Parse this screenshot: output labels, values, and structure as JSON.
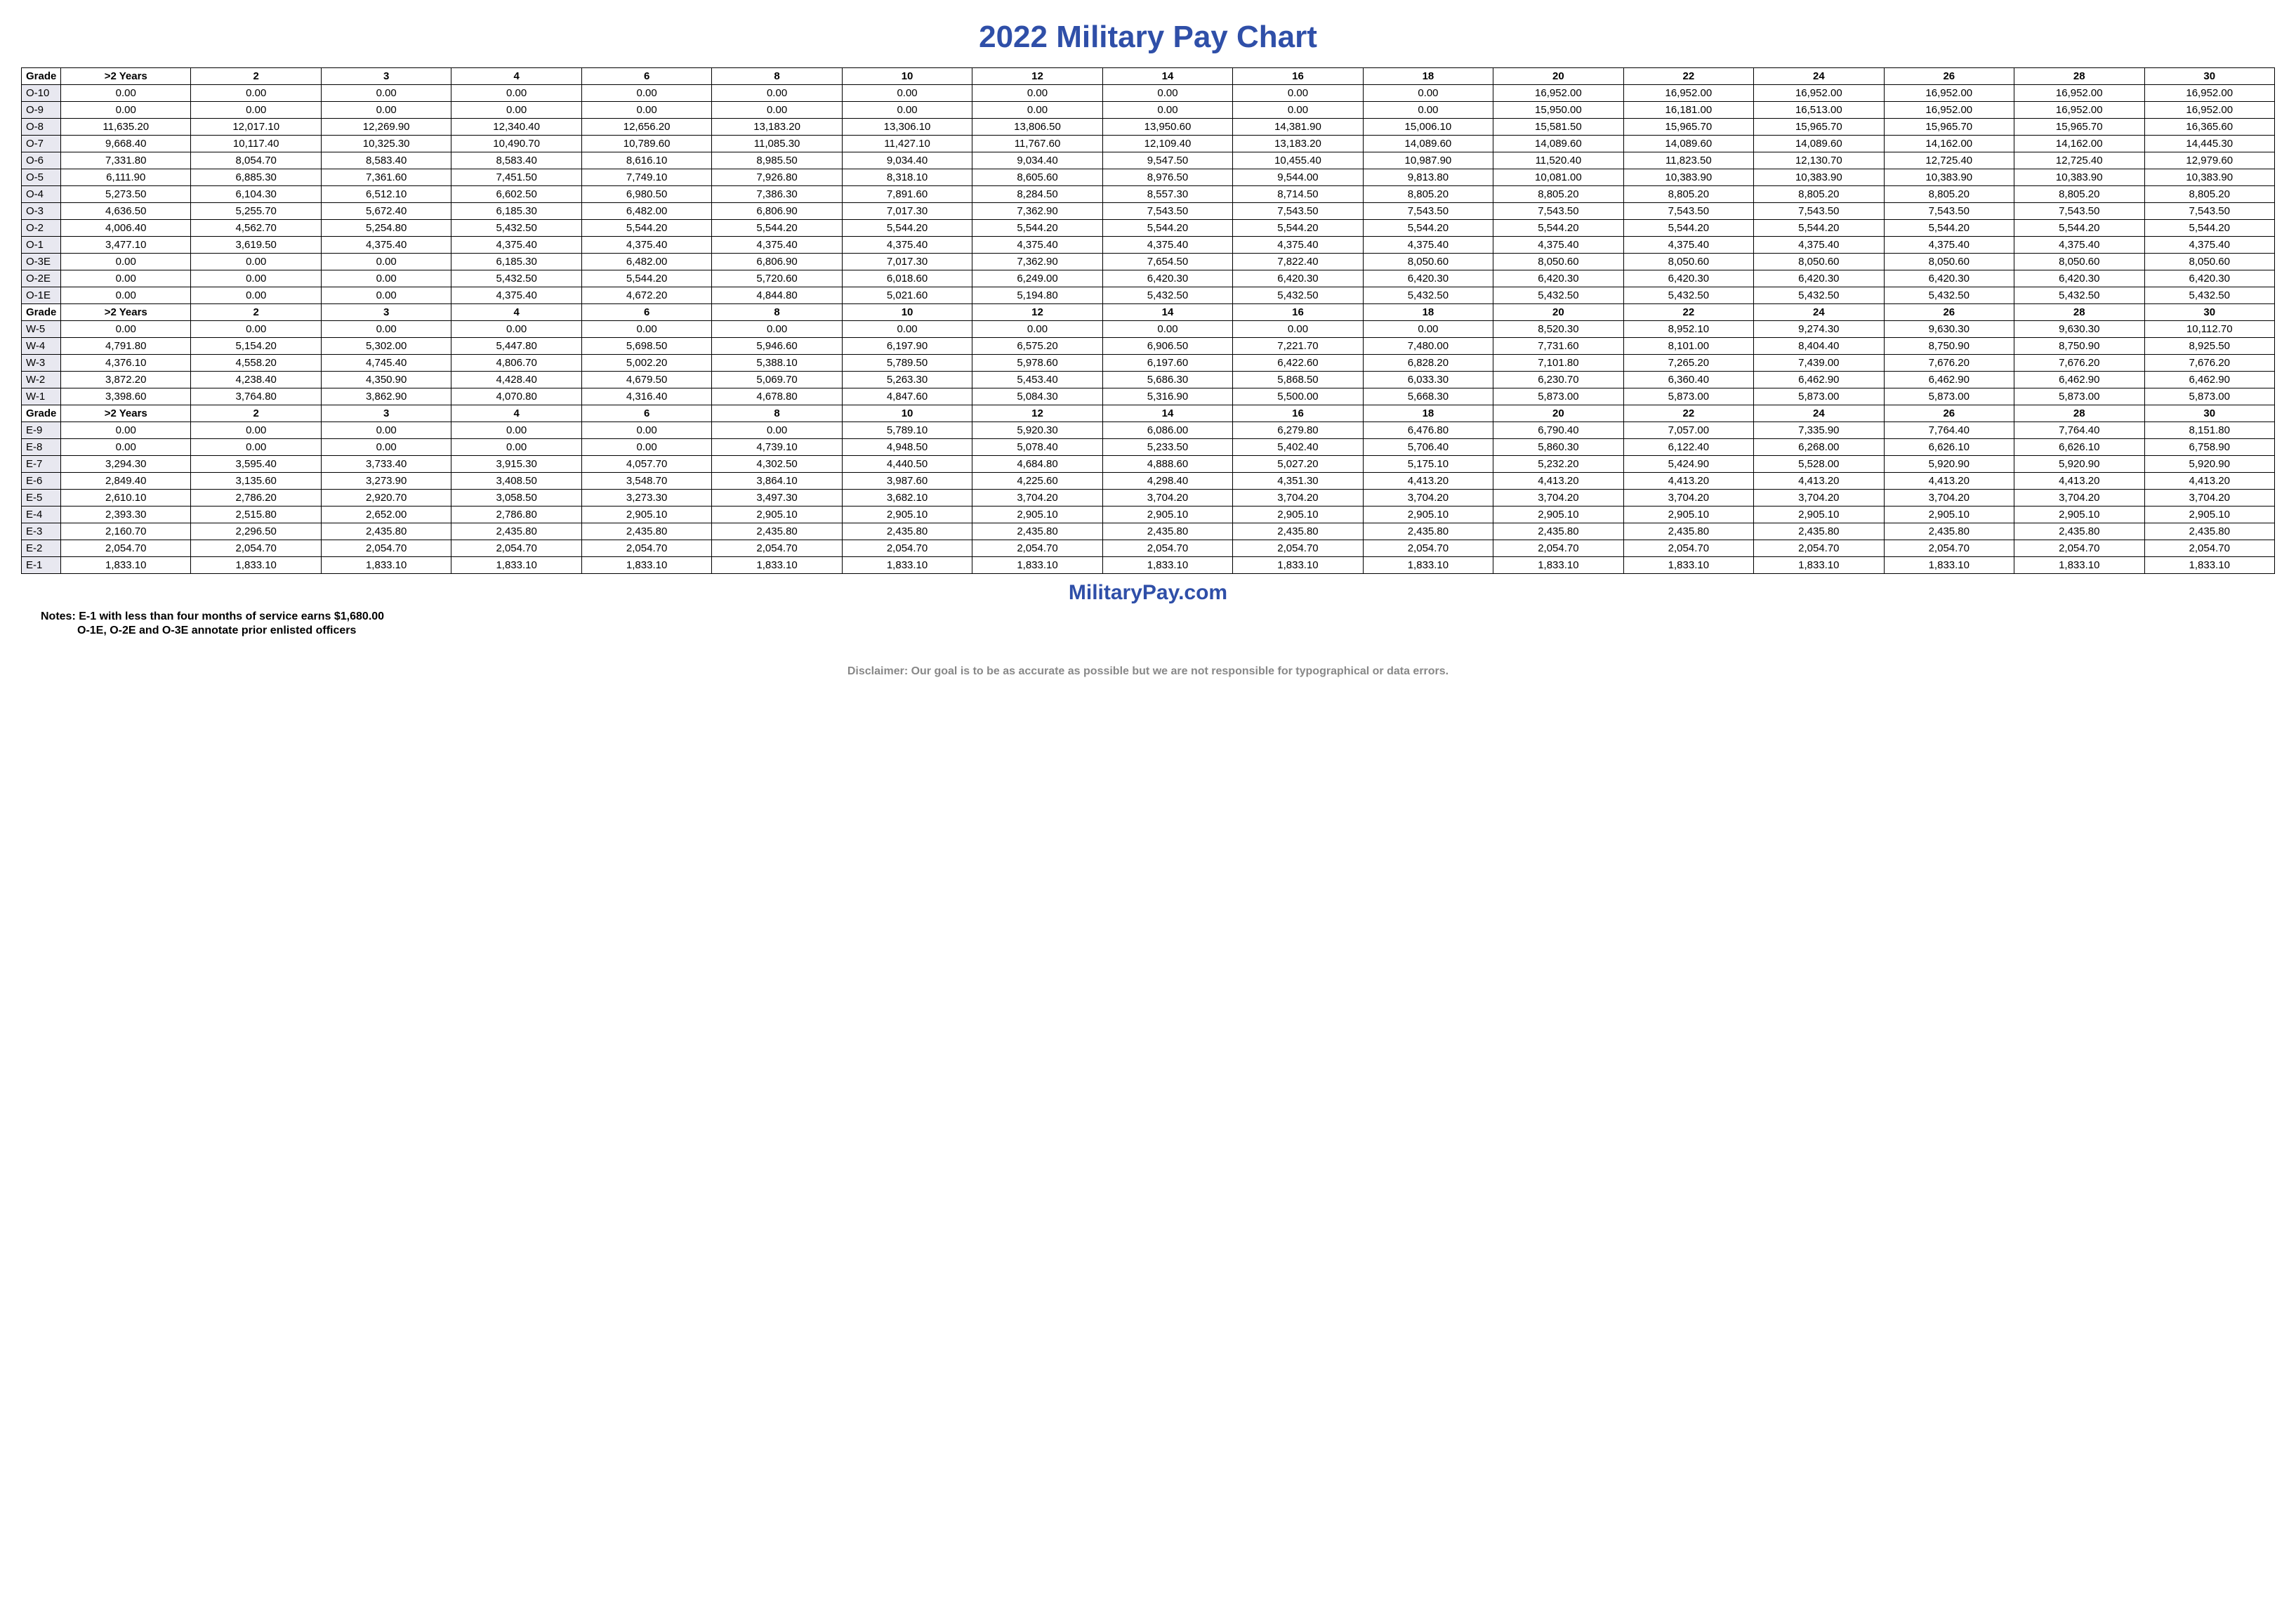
{
  "title": "2022 Military Pay Chart",
  "site": "MilitaryPay.com",
  "notes_line1": "Notes: E-1 with less than four months of service earns $1,680.00",
  "notes_line2": "O-1E, O-2E and O-3E annotate prior enlisted officers",
  "disclaimer": "Disclaimer: Our goal is to be as accurate as possible but we are not responsible for typographical or data errors.",
  "headers": [
    "Grade",
    ">2 Years",
    "2",
    "3",
    "4",
    "6",
    "8",
    "10",
    "12",
    "14",
    "16",
    "18",
    "20",
    "22",
    "24",
    "26",
    "28",
    "30"
  ],
  "sections": [
    {
      "rows": [
        {
          "grade": "O-10",
          "cells": [
            "0.00",
            "0.00",
            "0.00",
            "0.00",
            "0.00",
            "0.00",
            "0.00",
            "0.00",
            "0.00",
            "0.00",
            "0.00",
            "16,952.00",
            "16,952.00",
            "16,952.00",
            "16,952.00",
            "16,952.00",
            "16,952.00"
          ]
        },
        {
          "grade": "O-9",
          "cells": [
            "0.00",
            "0.00",
            "0.00",
            "0.00",
            "0.00",
            "0.00",
            "0.00",
            "0.00",
            "0.00",
            "0.00",
            "0.00",
            "15,950.00",
            "16,181.00",
            "16,513.00",
            "16,952.00",
            "16,952.00",
            "16,952.00"
          ]
        },
        {
          "grade": "O-8",
          "cells": [
            "11,635.20",
            "12,017.10",
            "12,269.90",
            "12,340.40",
            "12,656.20",
            "13,183.20",
            "13,306.10",
            "13,806.50",
            "13,950.60",
            "14,381.90",
            "15,006.10",
            "15,581.50",
            "15,965.70",
            "15,965.70",
            "15,965.70",
            "15,965.70",
            "16,365.60"
          ]
        },
        {
          "grade": "O-7",
          "cells": [
            "9,668.40",
            "10,117.40",
            "10,325.30",
            "10,490.70",
            "10,789.60",
            "11,085.30",
            "11,427.10",
            "11,767.60",
            "12,109.40",
            "13,183.20",
            "14,089.60",
            "14,089.60",
            "14,089.60",
            "14,089.60",
            "14,162.00",
            "14,162.00",
            "14,445.30"
          ]
        },
        {
          "grade": "O-6",
          "cells": [
            "7,331.80",
            "8,054.70",
            "8,583.40",
            "8,583.40",
            "8,616.10",
            "8,985.50",
            "9,034.40",
            "9,034.40",
            "9,547.50",
            "10,455.40",
            "10,987.90",
            "11,520.40",
            "11,823.50",
            "12,130.70",
            "12,725.40",
            "12,725.40",
            "12,979.60"
          ]
        },
        {
          "grade": "O-5",
          "cells": [
            "6,111.90",
            "6,885.30",
            "7,361.60",
            "7,451.50",
            "7,749.10",
            "7,926.80",
            "8,318.10",
            "8,605.60",
            "8,976.50",
            "9,544.00",
            "9,813.80",
            "10,081.00",
            "10,383.90",
            "10,383.90",
            "10,383.90",
            "10,383.90",
            "10,383.90"
          ]
        },
        {
          "grade": "O-4",
          "cells": [
            "5,273.50",
            "6,104.30",
            "6,512.10",
            "6,602.50",
            "6,980.50",
            "7,386.30",
            "7,891.60",
            "8,284.50",
            "8,557.30",
            "8,714.50",
            "8,805.20",
            "8,805.20",
            "8,805.20",
            "8,805.20",
            "8,805.20",
            "8,805.20",
            "8,805.20"
          ]
        },
        {
          "grade": "O-3",
          "cells": [
            "4,636.50",
            "5,255.70",
            "5,672.40",
            "6,185.30",
            "6,482.00",
            "6,806.90",
            "7,017.30",
            "7,362.90",
            "7,543.50",
            "7,543.50",
            "7,543.50",
            "7,543.50",
            "7,543.50",
            "7,543.50",
            "7,543.50",
            "7,543.50",
            "7,543.50"
          ]
        },
        {
          "grade": "O-2",
          "cells": [
            "4,006.40",
            "4,562.70",
            "5,254.80",
            "5,432.50",
            "5,544.20",
            "5,544.20",
            "5,544.20",
            "5,544.20",
            "5,544.20",
            "5,544.20",
            "5,544.20",
            "5,544.20",
            "5,544.20",
            "5,544.20",
            "5,544.20",
            "5,544.20",
            "5,544.20"
          ]
        },
        {
          "grade": "O-1",
          "cells": [
            "3,477.10",
            "3,619.50",
            "4,375.40",
            "4,375.40",
            "4,375.40",
            "4,375.40",
            "4,375.40",
            "4,375.40",
            "4,375.40",
            "4,375.40",
            "4,375.40",
            "4,375.40",
            "4,375.40",
            "4,375.40",
            "4,375.40",
            "4,375.40",
            "4,375.40"
          ]
        },
        {
          "grade": "O-3E",
          "cells": [
            "0.00",
            "0.00",
            "0.00",
            "6,185.30",
            "6,482.00",
            "6,806.90",
            "7,017.30",
            "7,362.90",
            "7,654.50",
            "7,822.40",
            "8,050.60",
            "8,050.60",
            "8,050.60",
            "8,050.60",
            "8,050.60",
            "8,050.60",
            "8,050.60"
          ]
        },
        {
          "grade": "O-2E",
          "cells": [
            "0.00",
            "0.00",
            "0.00",
            "5,432.50",
            "5,544.20",
            "5,720.60",
            "6,018.60",
            "6,249.00",
            "6,420.30",
            "6,420.30",
            "6,420.30",
            "6,420.30",
            "6,420.30",
            "6,420.30",
            "6,420.30",
            "6,420.30",
            "6,420.30"
          ]
        },
        {
          "grade": "O-1E",
          "cells": [
            "0.00",
            "0.00",
            "0.00",
            "4,375.40",
            "4,672.20",
            "4,844.80",
            "5,021.60",
            "5,194.80",
            "5,432.50",
            "5,432.50",
            "5,432.50",
            "5,432.50",
            "5,432.50",
            "5,432.50",
            "5,432.50",
            "5,432.50",
            "5,432.50"
          ]
        }
      ]
    },
    {
      "rows": [
        {
          "grade": "W-5",
          "cells": [
            "0.00",
            "0.00",
            "0.00",
            "0.00",
            "0.00",
            "0.00",
            "0.00",
            "0.00",
            "0.00",
            "0.00",
            "0.00",
            "8,520.30",
            "8,952.10",
            "9,274.30",
            "9,630.30",
            "9,630.30",
            "10,112.70"
          ]
        },
        {
          "grade": "W-4",
          "cells": [
            "4,791.80",
            "5,154.20",
            "5,302.00",
            "5,447.80",
            "5,698.50",
            "5,946.60",
            "6,197.90",
            "6,575.20",
            "6,906.50",
            "7,221.70",
            "7,480.00",
            "7,731.60",
            "8,101.00",
            "8,404.40",
            "8,750.90",
            "8,750.90",
            "8,925.50"
          ]
        },
        {
          "grade": "W-3",
          "cells": [
            "4,376.10",
            "4,558.20",
            "4,745.40",
            "4,806.70",
            "5,002.20",
            "5,388.10",
            "5,789.50",
            "5,978.60",
            "6,197.60",
            "6,422.60",
            "6,828.20",
            "7,101.80",
            "7,265.20",
            "7,439.00",
            "7,676.20",
            "7,676.20",
            "7,676.20"
          ]
        },
        {
          "grade": "W-2",
          "cells": [
            "3,872.20",
            "4,238.40",
            "4,350.90",
            "4,428.40",
            "4,679.50",
            "5,069.70",
            "5,263.30",
            "5,453.40",
            "5,686.30",
            "5,868.50",
            "6,033.30",
            "6,230.70",
            "6,360.40",
            "6,462.90",
            "6,462.90",
            "6,462.90",
            "6,462.90"
          ]
        },
        {
          "grade": "W-1",
          "cells": [
            "3,398.60",
            "3,764.80",
            "3,862.90",
            "4,070.80",
            "4,316.40",
            "4,678.80",
            "4,847.60",
            "5,084.30",
            "5,316.90",
            "5,500.00",
            "5,668.30",
            "5,873.00",
            "5,873.00",
            "5,873.00",
            "5,873.00",
            "5,873.00",
            "5,873.00"
          ]
        }
      ]
    },
    {
      "rows": [
        {
          "grade": "E-9",
          "cells": [
            "0.00",
            "0.00",
            "0.00",
            "0.00",
            "0.00",
            "0.00",
            "5,789.10",
            "5,920.30",
            "6,086.00",
            "6,279.80",
            "6,476.80",
            "6,790.40",
            "7,057.00",
            "7,335.90",
            "7,764.40",
            "7,764.40",
            "8,151.80"
          ]
        },
        {
          "grade": "E-8",
          "cells": [
            "0.00",
            "0.00",
            "0.00",
            "0.00",
            "0.00",
            "4,739.10",
            "4,948.50",
            "5,078.40",
            "5,233.50",
            "5,402.40",
            "5,706.40",
            "5,860.30",
            "6,122.40",
            "6,268.00",
            "6,626.10",
            "6,626.10",
            "6,758.90"
          ]
        },
        {
          "grade": "E-7",
          "cells": [
            "3,294.30",
            "3,595.40",
            "3,733.40",
            "3,915.30",
            "4,057.70",
            "4,302.50",
            "4,440.50",
            "4,684.80",
            "4,888.60",
            "5,027.20",
            "5,175.10",
            "5,232.20",
            "5,424.90",
            "5,528.00",
            "5,920.90",
            "5,920.90",
            "5,920.90"
          ]
        },
        {
          "grade": "E-6",
          "cells": [
            "2,849.40",
            "3,135.60",
            "3,273.90",
            "3,408.50",
            "3,548.70",
            "3,864.10",
            "3,987.60",
            "4,225.60",
            "4,298.40",
            "4,351.30",
            "4,413.20",
            "4,413.20",
            "4,413.20",
            "4,413.20",
            "4,413.20",
            "4,413.20",
            "4,413.20"
          ]
        },
        {
          "grade": "E-5",
          "cells": [
            "2,610.10",
            "2,786.20",
            "2,920.70",
            "3,058.50",
            "3,273.30",
            "3,497.30",
            "3,682.10",
            "3,704.20",
            "3,704.20",
            "3,704.20",
            "3,704.20",
            "3,704.20",
            "3,704.20",
            "3,704.20",
            "3,704.20",
            "3,704.20",
            "3,704.20"
          ]
        },
        {
          "grade": "E-4",
          "cells": [
            "2,393.30",
            "2,515.80",
            "2,652.00",
            "2,786.80",
            "2,905.10",
            "2,905.10",
            "2,905.10",
            "2,905.10",
            "2,905.10",
            "2,905.10",
            "2,905.10",
            "2,905.10",
            "2,905.10",
            "2,905.10",
            "2,905.10",
            "2,905.10",
            "2,905.10"
          ]
        },
        {
          "grade": "E-3",
          "cells": [
            "2,160.70",
            "2,296.50",
            "2,435.80",
            "2,435.80",
            "2,435.80",
            "2,435.80",
            "2,435.80",
            "2,435.80",
            "2,435.80",
            "2,435.80",
            "2,435.80",
            "2,435.80",
            "2,435.80",
            "2,435.80",
            "2,435.80",
            "2,435.80",
            "2,435.80"
          ]
        },
        {
          "grade": "E-2",
          "cells": [
            "2,054.70",
            "2,054.70",
            "2,054.70",
            "2,054.70",
            "2,054.70",
            "2,054.70",
            "2,054.70",
            "2,054.70",
            "2,054.70",
            "2,054.70",
            "2,054.70",
            "2,054.70",
            "2,054.70",
            "2,054.70",
            "2,054.70",
            "2,054.70",
            "2,054.70"
          ]
        },
        {
          "grade": "E-1",
          "cells": [
            "1,833.10",
            "1,833.10",
            "1,833.10",
            "1,833.10",
            "1,833.10",
            "1,833.10",
            "1,833.10",
            "1,833.10",
            "1,833.10",
            "1,833.10",
            "1,833.10",
            "1,833.10",
            "1,833.10",
            "1,833.10",
            "1,833.10",
            "1,833.10",
            "1,833.10"
          ]
        }
      ]
    }
  ]
}
